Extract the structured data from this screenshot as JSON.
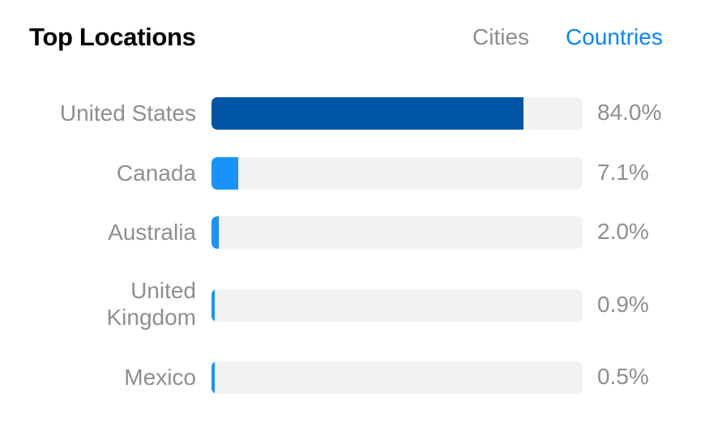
{
  "header": {
    "title": "Top Locations",
    "tabs": [
      {
        "label": "Cities",
        "active": false
      },
      {
        "label": "Countries",
        "active": true
      }
    ]
  },
  "colors": {
    "primary_fill": "#0055a5",
    "secondary_fill": "#1993f8",
    "track": "#f2f2f2",
    "active_tab": "#0a84ff",
    "muted_text": "#8e8e93"
  },
  "chart_data": {
    "type": "bar",
    "orientation": "horizontal",
    "categories": [
      "United States",
      "Canada",
      "Australia",
      "United Kingdom",
      "Mexico"
    ],
    "values": [
      84.0,
      7.1,
      2.0,
      0.9,
      0.5
    ],
    "value_labels": [
      "84.0%",
      "7.1%",
      "2.0%",
      "0.9%",
      "0.5%"
    ],
    "xlim": [
      0,
      100
    ]
  },
  "rows": [
    {
      "label": "United States",
      "value": "84.0%"
    },
    {
      "label": "Canada",
      "value": "7.1%"
    },
    {
      "label": "Australia",
      "value": "2.0%"
    },
    {
      "label": "United Kingdom",
      "value": "0.9%"
    },
    {
      "label": "Mexico",
      "value": "0.5%"
    }
  ]
}
